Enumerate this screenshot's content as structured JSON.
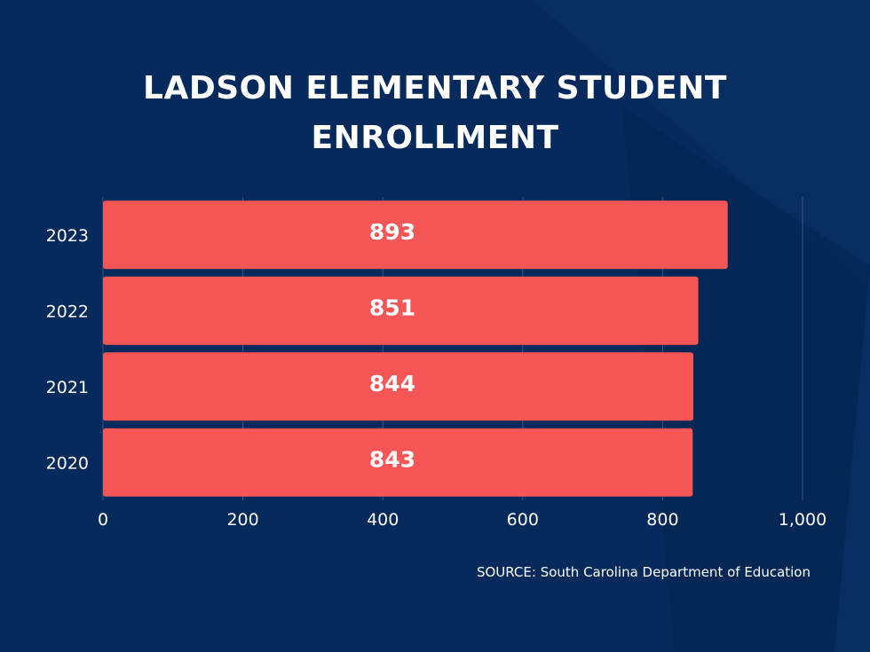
{
  "colors": {
    "background": "#072a5c",
    "bar": "#f75657",
    "text": "#ffffff",
    "grid": "#3a5586"
  },
  "chart_data": {
    "type": "bar",
    "orientation": "horizontal",
    "title_lines": [
      "LADSON ELEMENTARY STUDENT",
      "ENROLLMENT"
    ],
    "categories": [
      "2023",
      "2022",
      "2021",
      "2020"
    ],
    "values": [
      893,
      851,
      844,
      843
    ],
    "data_labels": [
      "893",
      "851",
      "844",
      "843"
    ],
    "xlim": [
      0,
      1000
    ],
    "x_ticks": [
      0,
      200,
      400,
      600,
      800,
      1000
    ],
    "x_tick_labels": [
      "0",
      "200",
      "400",
      "600",
      "800",
      "1,000"
    ],
    "grid": true,
    "legend": "none",
    "xlabel": "",
    "ylabel": ""
  },
  "source": "SOURCE: South Carolina Department of Education"
}
